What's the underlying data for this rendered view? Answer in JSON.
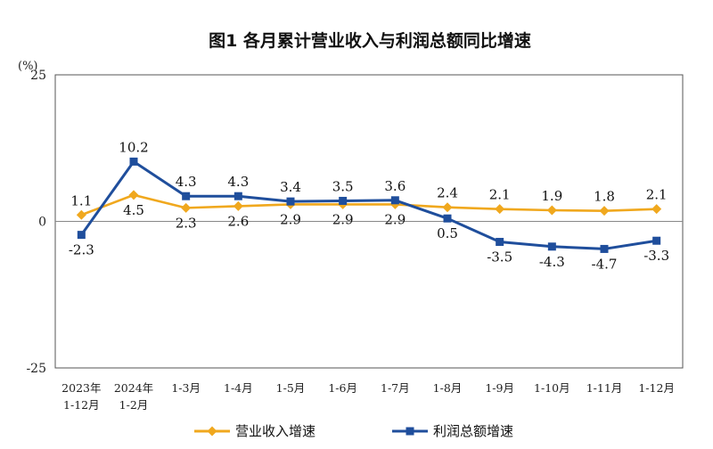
{
  "chart_data": {
    "type": "line",
    "title": "图1  各月累计营业收入与利润总额同比增速",
    "unit_label": "(%)",
    "ylim": [
      -25,
      25
    ],
    "yticks": [
      25,
      0,
      -25
    ],
    "categories": [
      [
        "2023年",
        "1-12月"
      ],
      [
        "2024年",
        "1-2月"
      ],
      [
        "1-3月"
      ],
      [
        "1-4月"
      ],
      [
        "1-5月"
      ],
      [
        "1-6月"
      ],
      [
        "1-7月"
      ],
      [
        "1-8月"
      ],
      [
        "1-9月"
      ],
      [
        "1-10月"
      ],
      [
        "1-11月"
      ],
      [
        "1-12月"
      ]
    ],
    "series": [
      {
        "name": "营业收入增速",
        "color": "#f0a81e",
        "marker": "diamond",
        "values": [
          1.1,
          4.5,
          2.3,
          2.6,
          2.9,
          2.9,
          2.9,
          2.4,
          2.1,
          1.9,
          1.8,
          2.1
        ],
        "label_pos": [
          "above",
          "below",
          "below",
          "below",
          "below",
          "below",
          "below",
          "above",
          "above",
          "above",
          "above",
          "above"
        ]
      },
      {
        "name": "利润总额增速",
        "color": "#1f4e9c",
        "marker": "square",
        "values": [
          -2.3,
          10.2,
          4.3,
          4.3,
          3.4,
          3.5,
          3.6,
          0.5,
          -3.5,
          -4.3,
          -4.7,
          -3.3
        ],
        "label_pos": [
          "below",
          "above",
          "above",
          "above",
          "above",
          "above",
          "above",
          "below",
          "below",
          "below",
          "below",
          "below"
        ]
      }
    ],
    "legend": {
      "placement": "bottom"
    },
    "grid": false
  }
}
